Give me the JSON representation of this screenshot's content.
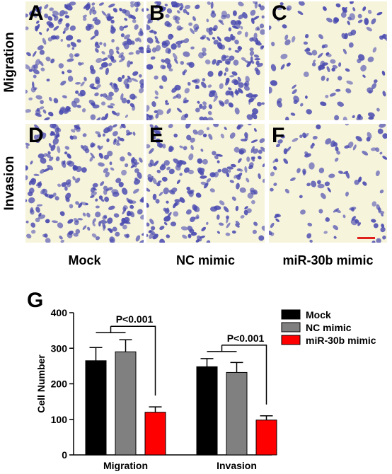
{
  "row_labels": [
    "Migration",
    "Invasion"
  ],
  "panels": [
    {
      "letter": "A",
      "density": 0.95
    },
    {
      "letter": "B",
      "density": 1.0
    },
    {
      "letter": "C",
      "density": 0.45
    },
    {
      "letter": "D",
      "density": 0.9
    },
    {
      "letter": "E",
      "density": 0.8
    },
    {
      "letter": "F",
      "density": 0.4
    }
  ],
  "column_labels": [
    "Mock",
    "NC mimic",
    "miR-30b mimic"
  ],
  "scale_bar_color": "#e0201b",
  "cell_color": "#4a4bb0",
  "chart_panel_letter": "G",
  "chart_data": {
    "type": "bar",
    "categories": [
      "Migration",
      "Invasion"
    ],
    "series": [
      {
        "name": "Mock",
        "color": "#000000",
        "values": [
          265,
          248
        ],
        "errors": [
          37,
          23
        ]
      },
      {
        "name": "NC mimic",
        "color": "#808080",
        "values": [
          290,
          232
        ],
        "errors": [
          34,
          28
        ]
      },
      {
        "name": "miR-30b mimic",
        "color": "#ff0000",
        "values": [
          120,
          98
        ],
        "errors": [
          15,
          12
        ]
      }
    ],
    "ylabel": "Cell Number",
    "ylim": [
      0,
      400
    ],
    "yticks": [
      0,
      100,
      200,
      300,
      400
    ],
    "annotations": [
      "P<0.001",
      "P<0.001"
    ],
    "legend_position": "top-right"
  }
}
